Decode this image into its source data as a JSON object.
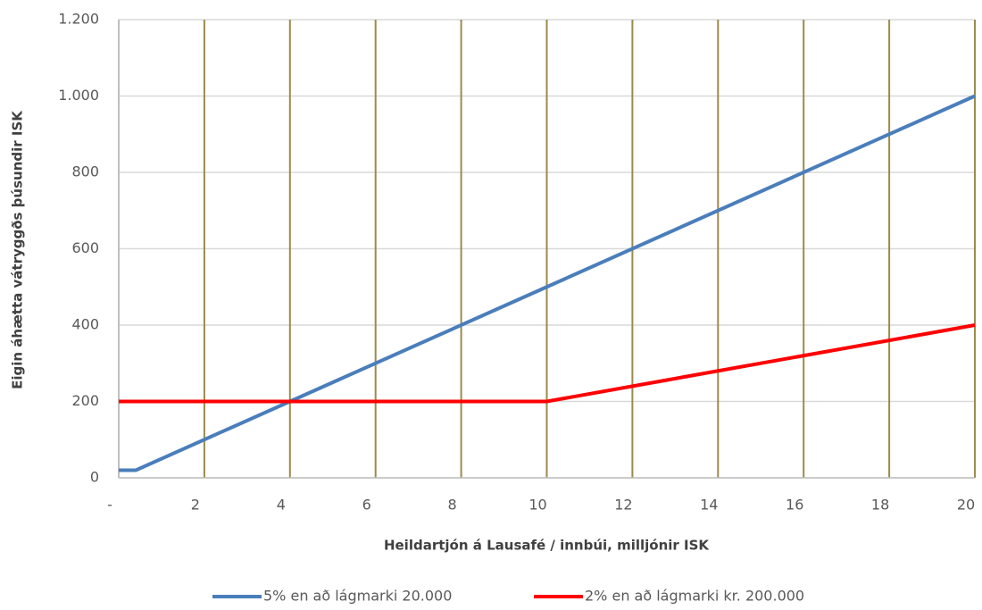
{
  "chart_data": {
    "type": "line",
    "x_label": "Heildartjón á Lausafé / innbúi, milljónir ISK",
    "y_label": "Eigin áhætta vátryggðs þúsundir ISK",
    "x": [
      0,
      0.4,
      10,
      20
    ],
    "series": [
      {
        "name": "5% en að lágmarki 20.000",
        "color": "#4a7ebb",
        "values": [
          20,
          20,
          500,
          1000
        ]
      },
      {
        "name": "2% en að lágmarki kr. 200.000",
        "color": "#ff0000",
        "values": [
          200,
          200,
          200,
          400
        ]
      }
    ],
    "xlim": [
      0,
      20
    ],
    "xticks": [
      {
        "value": 0,
        "label": "-"
      },
      2,
      4,
      6,
      8,
      10,
      12,
      14,
      16,
      18,
      20
    ],
    "ylim": [
      0,
      1200
    ],
    "yticks": [
      0,
      200,
      400,
      600,
      800,
      {
        "value": 1000,
        "label": "1.000"
      },
      {
        "value": 1200,
        "label": "1.200"
      }
    ],
    "grid": true,
    "legend": "bottom"
  }
}
